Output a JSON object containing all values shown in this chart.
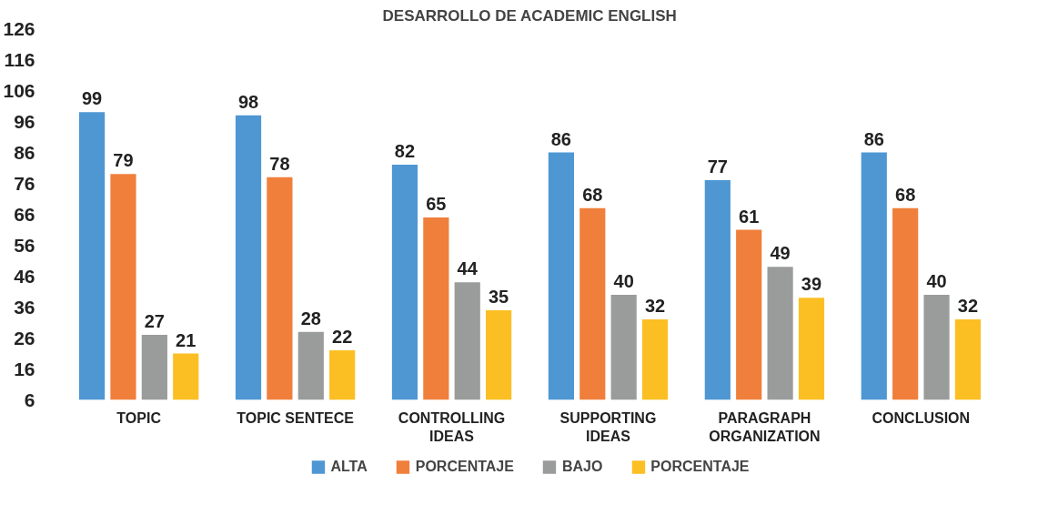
{
  "chart_data": {
    "type": "bar",
    "title": "DESARROLLO DE ACADEMIC ENGLISH",
    "categories": [
      "TOPIC",
      "TOPIC SENTECE",
      "CONTROLLING IDEAS",
      "SUPPORTING IDEAS",
      "PARAGRAPH ORGANIZATION",
      "CONCLUSION"
    ],
    "series": [
      {
        "name": "ALTA",
        "color": "#4e97d3",
        "values": [
          99,
          98,
          82,
          86,
          77,
          86
        ]
      },
      {
        "name": "PORCENTAJE",
        "color": "#f07f3c",
        "values": [
          79,
          78,
          65,
          68,
          61,
          68
        ]
      },
      {
        "name": "BAJO",
        "color": "#9a9b9b",
        "values": [
          27,
          28,
          44,
          40,
          49,
          40
        ]
      },
      {
        "name": "PORCENTAJE",
        "color": "#fbbf23",
        "values": [
          21,
          22,
          35,
          32,
          39,
          32
        ]
      }
    ],
    "ylim": [
      6,
      126
    ],
    "yticks": [
      6,
      16,
      26,
      36,
      46,
      56,
      66,
      76,
      86,
      96,
      106,
      116,
      126
    ],
    "data_labels": true,
    "grid": false,
    "legend": "bottom"
  }
}
